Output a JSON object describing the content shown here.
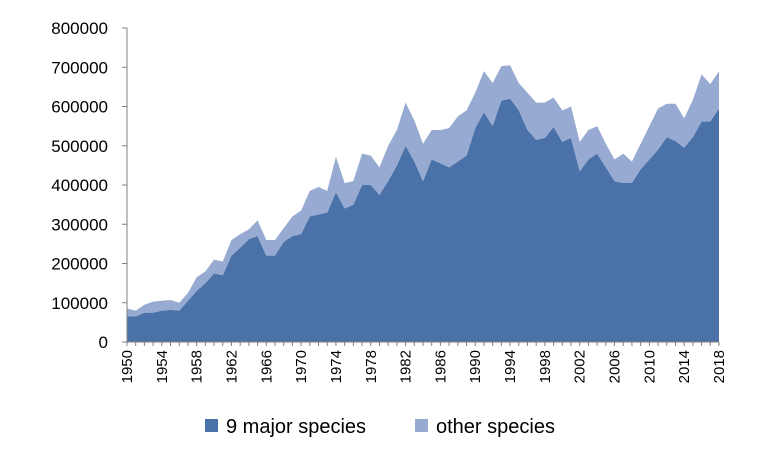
{
  "chart_data": {
    "type": "area",
    "stacked": true,
    "title": "",
    "xlabel": "",
    "ylabel": "",
    "ylim": [
      0,
      800000
    ],
    "yticks": [
      "0",
      "100000",
      "200000",
      "300000",
      "400000",
      "500000",
      "600000",
      "700000",
      "800000"
    ],
    "xticks": [
      "1950",
      "1954",
      "1958",
      "1962",
      "1966",
      "1970",
      "1974",
      "1978",
      "1982",
      "1986",
      "1990",
      "1994",
      "1998",
      "2002",
      "2006",
      "2010",
      "2014",
      "2018"
    ],
    "grid": false,
    "legend_position": "bottom",
    "x": [
      1950,
      1951,
      1952,
      1953,
      1954,
      1955,
      1956,
      1957,
      1958,
      1959,
      1960,
      1961,
      1962,
      1963,
      1964,
      1965,
      1966,
      1967,
      1968,
      1969,
      1970,
      1971,
      1972,
      1973,
      1974,
      1975,
      1976,
      1977,
      1978,
      1979,
      1980,
      1981,
      1982,
      1983,
      1984,
      1985,
      1986,
      1987,
      1988,
      1989,
      1990,
      1991,
      1992,
      1993,
      1994,
      1995,
      1996,
      1997,
      1998,
      1999,
      2000,
      2001,
      2002,
      2003,
      2004,
      2005,
      2006,
      2007,
      2008,
      2009,
      2010,
      2011,
      2012,
      2013,
      2014,
      2015,
      2016,
      2017,
      2018
    ],
    "series": [
      {
        "name": "9 major species",
        "color": "#4a72a8",
        "values": [
          65000,
          65000,
          75000,
          75000,
          80000,
          82000,
          80000,
          105000,
          130000,
          150000,
          175000,
          170000,
          220000,
          240000,
          262000,
          270000,
          220000,
          220000,
          255000,
          270000,
          275000,
          320000,
          325000,
          330000,
          382000,
          340000,
          350000,
          400000,
          400000,
          375000,
          410000,
          450000,
          500000,
          460000,
          410000,
          465000,
          455000,
          445000,
          460000,
          475000,
          545000,
          585000,
          550000,
          615000,
          620000,
          590000,
          540000,
          515000,
          520000,
          548000,
          510000,
          520000,
          435000,
          465000,
          480000,
          445000,
          410000,
          405000,
          405000,
          440000,
          465000,
          490000,
          522000,
          512000,
          495000,
          522000,
          562000,
          562000,
          595000
        ]
      },
      {
        "name": "other species",
        "color": "#97abd2",
        "values": [
          20000,
          15000,
          20000,
          28000,
          25000,
          25000,
          20000,
          20000,
          35000,
          30000,
          35000,
          35000,
          40000,
          35000,
          25000,
          40000,
          40000,
          40000,
          35000,
          50000,
          60000,
          65000,
          70000,
          55000,
          90000,
          65000,
          60000,
          80000,
          75000,
          70000,
          90000,
          90000,
          110000,
          105000,
          95000,
          75000,
          85000,
          100000,
          115000,
          115000,
          90000,
          105000,
          110000,
          88000,
          85000,
          70000,
          95000,
          95000,
          90000,
          75000,
          80000,
          80000,
          75000,
          75000,
          70000,
          60000,
          55000,
          75000,
          55000,
          65000,
          85000,
          105000,
          85000,
          95000,
          75000,
          95000,
          120000,
          95000,
          95000
        ]
      }
    ]
  }
}
